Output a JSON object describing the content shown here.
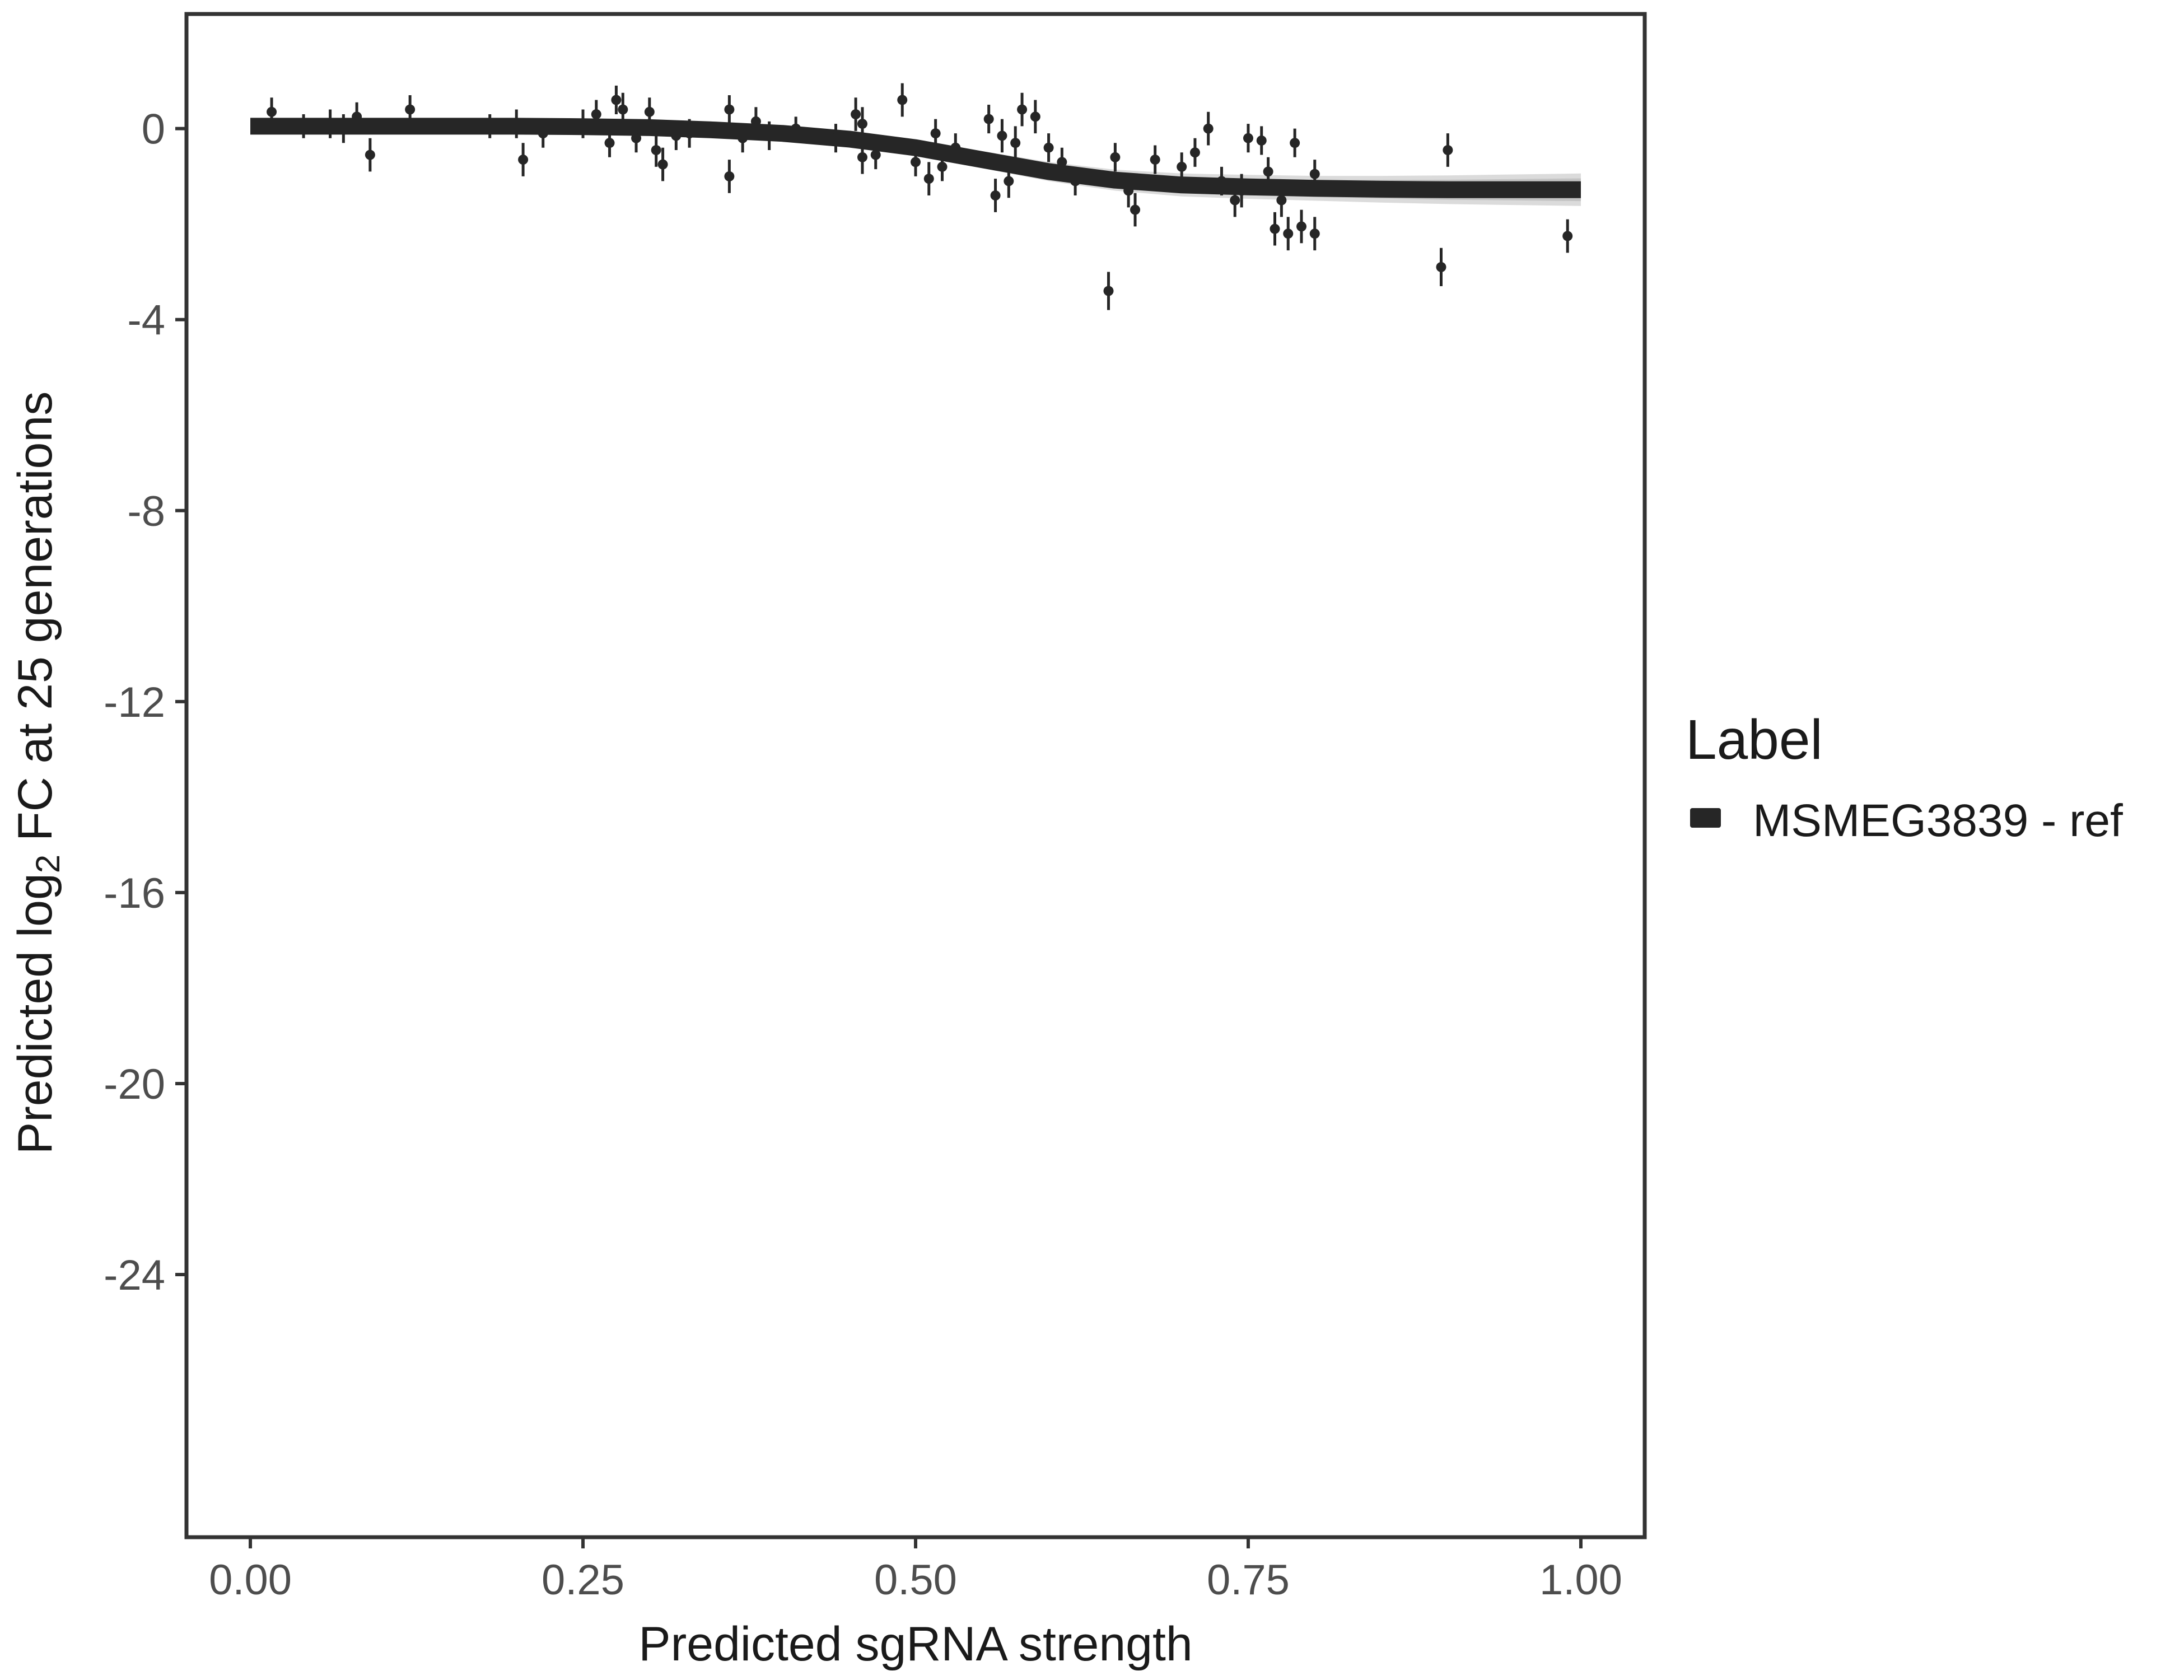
{
  "chart_data": {
    "type": "scatter",
    "xlabel": "Predicted sgRNA strength",
    "ylabel_parts": {
      "prefix": "Predicted  log",
      "subscript": "2",
      "suffix": " FC at 25 generations"
    },
    "xlim": [
      -0.048,
      1.048
    ],
    "ylim": [
      -29.5,
      2.4
    ],
    "xticks": [
      0.0,
      0.25,
      0.5,
      0.75,
      1.0
    ],
    "xtick_labels": [
      "0.00",
      "0.25",
      "0.50",
      "0.75",
      "1.00"
    ],
    "yticks": [
      0,
      -4,
      -8,
      -12,
      -16,
      -20,
      -24
    ],
    "ytick_labels": [
      "0",
      "-4",
      "-8",
      "-12",
      "-16",
      "-20",
      "-24"
    ],
    "grid": false,
    "legend": {
      "title": "Label",
      "position": "right",
      "entries": [
        "MSMEG3839 - ref"
      ]
    },
    "colors": {
      "series": "#262626",
      "ribbon": "#999999",
      "axis": "#333333",
      "tick_text": "#4d4d4d"
    },
    "fit": {
      "name": "MSMEG3839 - ref",
      "x": [
        0.0,
        0.05,
        0.1,
        0.15,
        0.2,
        0.25,
        0.3,
        0.35,
        0.4,
        0.45,
        0.5,
        0.55,
        0.6,
        0.65,
        0.7,
        0.75,
        0.8,
        0.85,
        0.9,
        0.95,
        1.0
      ],
      "y": [
        0.05,
        0.05,
        0.05,
        0.05,
        0.05,
        0.04,
        0.02,
        -0.03,
        -0.1,
        -0.22,
        -0.4,
        -0.65,
        -0.9,
        -1.08,
        -1.18,
        -1.22,
        -1.25,
        -1.27,
        -1.28,
        -1.28,
        -1.28
      ],
      "band": [
        0.05,
        0.05,
        0.05,
        0.05,
        0.05,
        0.05,
        0.06,
        0.07,
        0.09,
        0.12,
        0.15,
        0.18,
        0.2,
        0.22,
        0.24,
        0.25,
        0.26,
        0.28,
        0.3,
        0.32,
        0.34
      ]
    },
    "points": [
      {
        "x": 0.016,
        "y": 0.35,
        "err": 0.3
      },
      {
        "x": 0.04,
        "y": 0.05,
        "err": 0.25
      },
      {
        "x": 0.06,
        "y": 0.1,
        "err": 0.3
      },
      {
        "x": 0.07,
        "y": 0.0,
        "err": 0.3
      },
      {
        "x": 0.08,
        "y": 0.25,
        "err": 0.3
      },
      {
        "x": 0.09,
        "y": -0.55,
        "err": 0.35
      },
      {
        "x": 0.12,
        "y": 0.4,
        "err": 0.3
      },
      {
        "x": 0.18,
        "y": 0.05,
        "err": 0.25
      },
      {
        "x": 0.2,
        "y": 0.1,
        "err": 0.3
      },
      {
        "x": 0.205,
        "y": -0.65,
        "err": 0.35
      },
      {
        "x": 0.22,
        "y": -0.1,
        "err": 0.3
      },
      {
        "x": 0.25,
        "y": 0.1,
        "err": 0.3
      },
      {
        "x": 0.26,
        "y": 0.3,
        "err": 0.3
      },
      {
        "x": 0.27,
        "y": -0.3,
        "err": 0.3
      },
      {
        "x": 0.275,
        "y": 0.6,
        "err": 0.3
      },
      {
        "x": 0.28,
        "y": 0.4,
        "err": 0.35
      },
      {
        "x": 0.29,
        "y": -0.2,
        "err": 0.3
      },
      {
        "x": 0.3,
        "y": 0.35,
        "err": 0.3
      },
      {
        "x": 0.305,
        "y": -0.45,
        "err": 0.35
      },
      {
        "x": 0.31,
        "y": -0.75,
        "err": 0.35
      },
      {
        "x": 0.32,
        "y": -0.15,
        "err": 0.3
      },
      {
        "x": 0.33,
        "y": -0.1,
        "err": 0.3
      },
      {
        "x": 0.36,
        "y": 0.4,
        "err": 0.3
      },
      {
        "x": 0.36,
        "y": -1.0,
        "err": 0.35
      },
      {
        "x": 0.37,
        "y": -0.2,
        "err": 0.3
      },
      {
        "x": 0.38,
        "y": 0.15,
        "err": 0.3
      },
      {
        "x": 0.39,
        "y": -0.15,
        "err": 0.3
      },
      {
        "x": 0.41,
        "y": 0.0,
        "err": 0.25
      },
      {
        "x": 0.44,
        "y": -0.2,
        "err": 0.3
      },
      {
        "x": 0.455,
        "y": 0.3,
        "err": 0.35
      },
      {
        "x": 0.46,
        "y": 0.1,
        "err": 0.35
      },
      {
        "x": 0.46,
        "y": -0.6,
        "err": 0.35
      },
      {
        "x": 0.47,
        "y": -0.55,
        "err": 0.3
      },
      {
        "x": 0.49,
        "y": 0.6,
        "err": 0.35
      },
      {
        "x": 0.5,
        "y": -0.7,
        "err": 0.3
      },
      {
        "x": 0.51,
        "y": -1.05,
        "err": 0.35
      },
      {
        "x": 0.515,
        "y": -0.1,
        "err": 0.3
      },
      {
        "x": 0.52,
        "y": -0.8,
        "err": 0.3
      },
      {
        "x": 0.53,
        "y": -0.4,
        "err": 0.3
      },
      {
        "x": 0.555,
        "y": 0.2,
        "err": 0.3
      },
      {
        "x": 0.56,
        "y": -1.4,
        "err": 0.35
      },
      {
        "x": 0.565,
        "y": -0.15,
        "err": 0.35
      },
      {
        "x": 0.57,
        "y": -1.1,
        "err": 0.35
      },
      {
        "x": 0.575,
        "y": -0.3,
        "err": 0.35
      },
      {
        "x": 0.58,
        "y": 0.4,
        "err": 0.35
      },
      {
        "x": 0.59,
        "y": 0.25,
        "err": 0.35
      },
      {
        "x": 0.6,
        "y": -0.4,
        "err": 0.3
      },
      {
        "x": 0.61,
        "y": -0.7,
        "err": 0.3
      },
      {
        "x": 0.62,
        "y": -1.1,
        "err": 0.3
      },
      {
        "x": 0.645,
        "y": -3.4,
        "err": 0.4
      },
      {
        "x": 0.65,
        "y": -0.6,
        "err": 0.3
      },
      {
        "x": 0.66,
        "y": -1.3,
        "err": 0.35
      },
      {
        "x": 0.665,
        "y": -1.7,
        "err": 0.35
      },
      {
        "x": 0.68,
        "y": -0.65,
        "err": 0.3
      },
      {
        "x": 0.7,
        "y": -0.8,
        "err": 0.3
      },
      {
        "x": 0.71,
        "y": -0.5,
        "err": 0.3
      },
      {
        "x": 0.72,
        "y": 0.0,
        "err": 0.35
      },
      {
        "x": 0.73,
        "y": -1.1,
        "err": 0.3
      },
      {
        "x": 0.74,
        "y": -1.5,
        "err": 0.35
      },
      {
        "x": 0.745,
        "y": -1.3,
        "err": 0.35
      },
      {
        "x": 0.75,
        "y": -0.2,
        "err": 0.3
      },
      {
        "x": 0.76,
        "y": -0.25,
        "err": 0.3
      },
      {
        "x": 0.765,
        "y": -0.9,
        "err": 0.3
      },
      {
        "x": 0.77,
        "y": -2.1,
        "err": 0.35
      },
      {
        "x": 0.775,
        "y": -1.5,
        "err": 0.35
      },
      {
        "x": 0.78,
        "y": -2.2,
        "err": 0.35
      },
      {
        "x": 0.785,
        "y": -0.3,
        "err": 0.3
      },
      {
        "x": 0.79,
        "y": -2.05,
        "err": 0.35
      },
      {
        "x": 0.8,
        "y": -2.2,
        "err": 0.35
      },
      {
        "x": 0.8,
        "y": -0.95,
        "err": 0.3
      },
      {
        "x": 0.895,
        "y": -2.9,
        "err": 0.4
      },
      {
        "x": 0.9,
        "y": -0.45,
        "err": 0.35
      },
      {
        "x": 0.99,
        "y": -2.25,
        "err": 0.35
      }
    ]
  }
}
